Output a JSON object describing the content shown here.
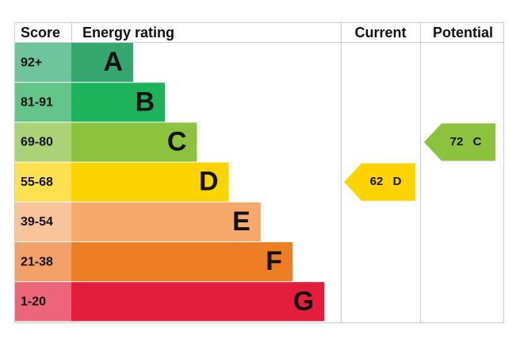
{
  "header": {
    "score": "Score",
    "energy_rating": "Energy rating",
    "current": "Current",
    "potential": "Potential"
  },
  "bands": [
    {
      "score": "92+",
      "letter": "A",
      "color": "#36a66f",
      "light": "#6ec49c"
    },
    {
      "score": "81-91",
      "letter": "B",
      "color": "#1db35a",
      "light": "#63c58a"
    },
    {
      "score": "69-80",
      "letter": "C",
      "color": "#8dc23f",
      "light": "#abd275"
    },
    {
      "score": "55-68",
      "letter": "D",
      "color": "#fed400",
      "light": "#fee150"
    },
    {
      "score": "39-54",
      "letter": "E",
      "color": "#f6a96b",
      "light": "#f9c39b"
    },
    {
      "score": "21-38",
      "letter": "F",
      "color": "#ee7e23",
      "light": "#f3a168"
    },
    {
      "score": "1-20",
      "letter": "G",
      "color": "#e31d3c",
      "light": "#ec6679"
    }
  ],
  "current": {
    "score": 62,
    "rating": "D"
  },
  "potential": {
    "score": 72,
    "rating": "C"
  }
}
